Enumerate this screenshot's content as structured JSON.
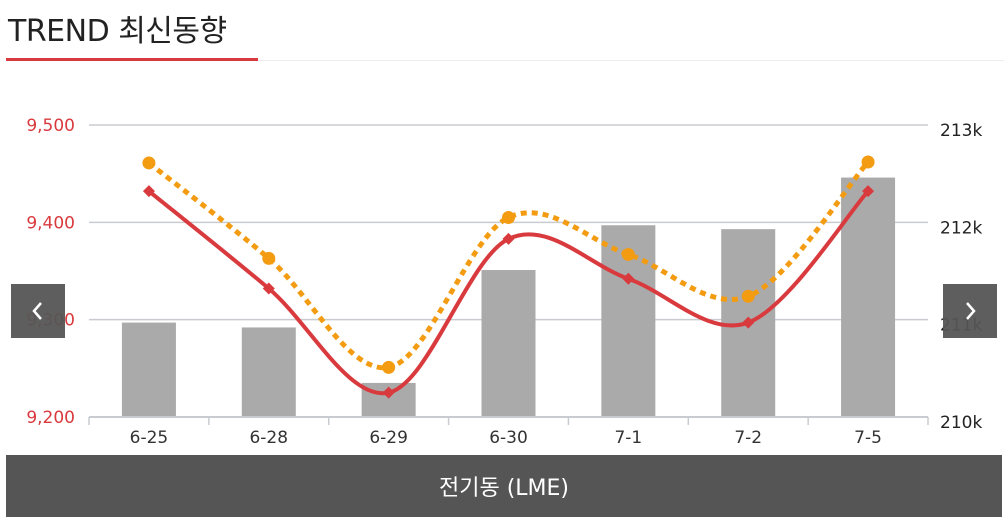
{
  "header": {
    "title": "TREND 최신동향"
  },
  "footer": {
    "label": "전기동 (LME)"
  },
  "nav": {
    "prev_icon": "chevron-left-icon",
    "next_icon": "chevron-right-icon"
  },
  "chart_data": {
    "type": "bar",
    "categories": [
      "6-25",
      "6-28",
      "6-29",
      "6-30",
      "7-1",
      "7-2",
      "7-5"
    ],
    "y_left": {
      "ticks": [
        9200,
        9300,
        9400,
        9500
      ],
      "tick_labels": [
        "9,200",
        "9,300",
        "9,400",
        "9,500"
      ],
      "ylim": [
        9200,
        9500
      ],
      "color": "#d93a3e"
    },
    "y_right": {
      "ticks": [
        210000,
        211000,
        212000,
        213000
      ],
      "tick_labels": [
        "210k",
        "211k",
        "212k",
        "213k"
      ],
      "ylim": [
        210000,
        213000
      ],
      "color": "#222222"
    },
    "grid": true,
    "series": [
      {
        "kind": "bar",
        "axis": "right",
        "color": "#aaaaaa",
        "values": [
          210970,
          210920,
          210350,
          211510,
          211970,
          211930,
          212460
        ]
      },
      {
        "kind": "line",
        "axis": "left",
        "color": "#d93a3e",
        "marker": "diamond",
        "smooth": true,
        "values": [
          9432,
          9332,
          9225,
          9383,
          9342,
          9297,
          9432
        ]
      },
      {
        "kind": "line",
        "axis": "left",
        "color": "#f39c12",
        "marker": "circle",
        "dashed": true,
        "smooth": true,
        "values": [
          9461,
          9363,
          9251,
          9405,
          9367,
          9324,
          9462
        ]
      }
    ]
  }
}
